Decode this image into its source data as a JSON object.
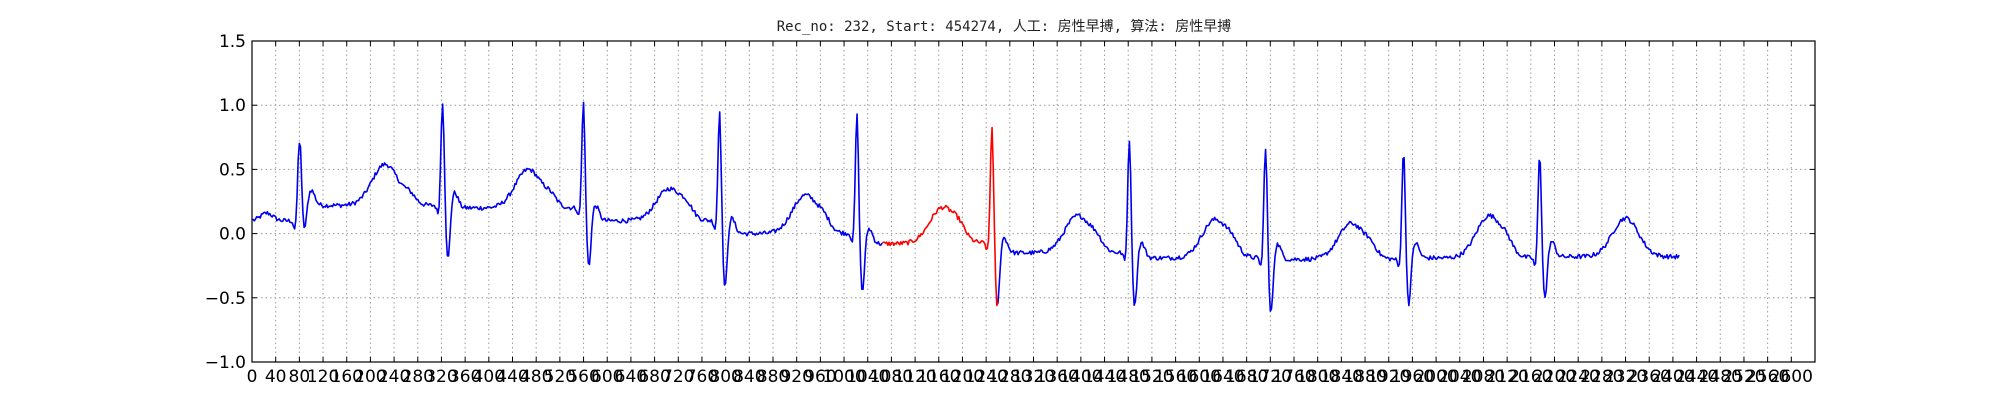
{
  "chart_data": {
    "type": "line",
    "title": "Rec_no: 232, Start: 454274, 人工: 房性早搏, 算法: 房性早搏",
    "xlabel": "",
    "ylabel": "",
    "xlim": [
      0,
      2640
    ],
    "ylim": [
      -1.0,
      1.5
    ],
    "yticks": [
      -1.0,
      -0.5,
      0.0,
      0.5,
      1.0,
      1.5
    ],
    "ytick_labels": [
      "−1.0",
      "−0.5",
      "0.0",
      "0.5",
      "1.0",
      "1.5"
    ],
    "xtick_step": 40,
    "xtick_max": 2600,
    "grid": true,
    "colors": {
      "normal": "#0000ee",
      "highlight": "#ff0000",
      "grid": "#9a9a9a"
    },
    "beats": [
      {
        "r": 80,
        "r_amp": 0.62,
        "s_amp": -0.2,
        "t_amp": 0.32,
        "base": 0.1,
        "baseline": 0.22,
        "highlight": false
      },
      {
        "r": 322,
        "r_amp": 0.82,
        "s_amp": -0.43,
        "t_amp": 0.3,
        "base": 0.22,
        "baseline": 0.2,
        "highlight": false
      },
      {
        "r": 560,
        "r_amp": 0.85,
        "s_amp": -0.38,
        "t_amp": 0.25,
        "base": 0.2,
        "baseline": 0.1,
        "highlight": false
      },
      {
        "r": 790,
        "r_amp": 0.88,
        "s_amp": -0.45,
        "t_amp": 0.3,
        "base": 0.1,
        "baseline": 0.0,
        "highlight": false
      },
      {
        "r": 1022,
        "r_amp": 0.95,
        "s_amp": -0.4,
        "t_amp": 0.28,
        "base": 0.0,
        "baseline": -0.08,
        "highlight": false
      },
      {
        "r": 1250,
        "r_amp": 0.93,
        "s_amp": -0.45,
        "t_amp": 0.29,
        "base": -0.07,
        "baseline": -0.15,
        "highlight": true
      },
      {
        "r": 1482,
        "r_amp": 0.9,
        "s_amp": -0.4,
        "t_amp": 0.3,
        "base": -0.15,
        "baseline": -0.19,
        "highlight": false
      },
      {
        "r": 1712,
        "r_amp": 0.88,
        "s_amp": -0.45,
        "t_amp": 0.28,
        "base": -0.19,
        "baseline": -0.2,
        "highlight": false
      },
      {
        "r": 1945,
        "r_amp": 0.85,
        "s_amp": -0.38,
        "t_amp": 0.33,
        "base": -0.2,
        "baseline": -0.19,
        "highlight": false
      },
      {
        "r": 2175,
        "r_amp": 0.81,
        "s_amp": -0.35,
        "t_amp": 0.3,
        "base": -0.19,
        "baseline": -0.18,
        "highlight": false
      }
    ],
    "trace_end": 2410,
    "red_segment": [
      1065,
      1260
    ]
  }
}
